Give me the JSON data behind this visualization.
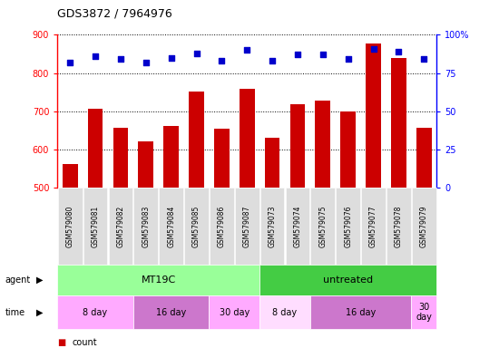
{
  "title": "GDS3872 / 7964976",
  "samples": [
    "GSM579080",
    "GSM579081",
    "GSM579082",
    "GSM579083",
    "GSM579084",
    "GSM579085",
    "GSM579086",
    "GSM579087",
    "GSM579073",
    "GSM579074",
    "GSM579075",
    "GSM579076",
    "GSM579077",
    "GSM579078",
    "GSM579079"
  ],
  "counts": [
    562,
    706,
    657,
    621,
    663,
    751,
    654,
    758,
    631,
    718,
    727,
    700,
    878,
    839,
    657
  ],
  "percentile_ranks": [
    82,
    86,
    84,
    82,
    85,
    88,
    83,
    90,
    83,
    87,
    87,
    84,
    91,
    89,
    84
  ],
  "ylim_left": [
    500,
    900
  ],
  "ylim_right": [
    0,
    100
  ],
  "yticks_left": [
    500,
    600,
    700,
    800,
    900
  ],
  "yticks_right": [
    0,
    25,
    50,
    75,
    100
  ],
  "bar_color": "#cc0000",
  "dot_color": "#0000cc",
  "agent_groups": [
    {
      "label": "MT19C",
      "start": 0,
      "end": 8,
      "color": "#99ff99"
    },
    {
      "label": "untreated",
      "start": 8,
      "end": 15,
      "color": "#44cc44"
    }
  ],
  "time_groups": [
    {
      "label": "8 day",
      "start": 0,
      "end": 3,
      "color": "#ffaaff"
    },
    {
      "label": "16 day",
      "start": 3,
      "end": 6,
      "color": "#cc77cc"
    },
    {
      "label": "30 day",
      "start": 6,
      "end": 8,
      "color": "#ffaaff"
    },
    {
      "label": "8 day",
      "start": 8,
      "end": 10,
      "color": "#ffddff"
    },
    {
      "label": "16 day",
      "start": 10,
      "end": 14,
      "color": "#cc77cc"
    },
    {
      "label": "30\nday",
      "start": 14,
      "end": 15,
      "color": "#ffaaff"
    }
  ],
  "background_color": "#ffffff",
  "xticklabel_bg": "#dddddd"
}
